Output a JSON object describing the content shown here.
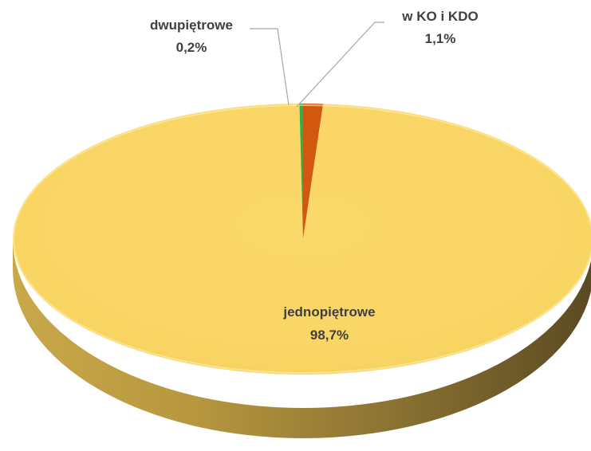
{
  "chart_data": {
    "type": "pie",
    "slices": [
      {
        "label": "jednopiętrowe",
        "value": 98.7,
        "value_label": "98,7%",
        "color": "#F9D564"
      },
      {
        "label": "dwupiętrowe",
        "value": 0.2,
        "value_label": "0,2%",
        "color": "#2EAE4B"
      },
      {
        "label": "w KO i KDO",
        "value": 1.1,
        "value_label": "1,1%",
        "color": "#D2570F"
      }
    ],
    "legend": "none",
    "style": "3d-tilted"
  }
}
